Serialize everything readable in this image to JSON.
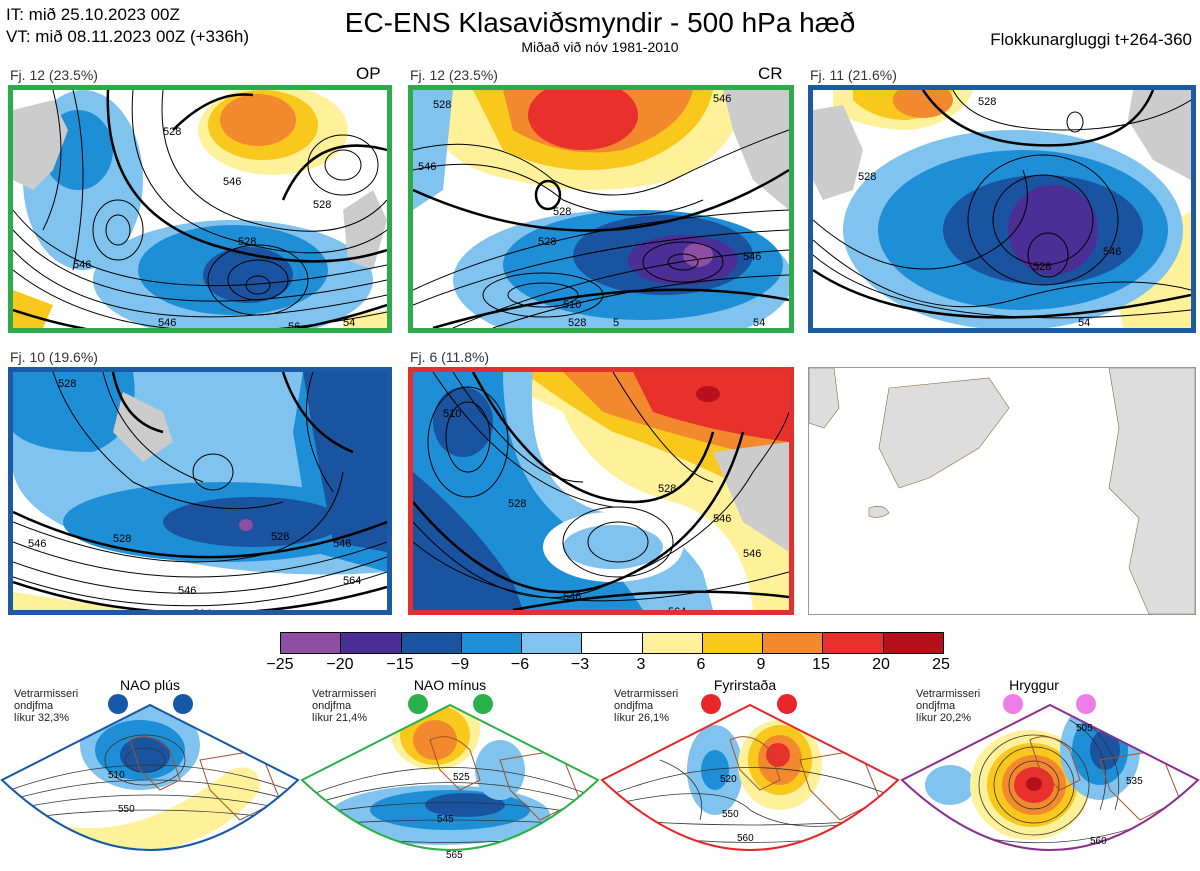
{
  "header": {
    "it_line": "IT: mið 25.10.2023 00Z",
    "vt_line": "VT: mið 08.11.2023 00Z  (+336h)",
    "title": "EC-ENS Klasaviðsmyndir - 500 hPa hæð",
    "subtitle": "Miðað við nóv 1981-2010",
    "window": "Flokkunargluggi t+264-360"
  },
  "panels": [
    {
      "label": "Fj. 12 (23.5%)",
      "tag": "OP",
      "border": "#2eaa4a"
    },
    {
      "label": "Fj. 12 (23.5%)",
      "tag": "CR",
      "border": "#2eaa4a"
    },
    {
      "label": "Fj. 11 (21.6%)",
      "tag": "",
      "border": "#1c5aa6"
    },
    {
      "label": "Fj. 10 (19.6%)",
      "tag": "",
      "border": "#1c5aa6"
    },
    {
      "label": "Fj. 6 (11.8%)",
      "tag": "",
      "border": "#e03030"
    }
  ],
  "contour_labels": {
    "p1": [
      "528",
      "546",
      "528",
      "528",
      "546",
      "546",
      "54",
      "56"
    ],
    "p2": [
      "546",
      "528",
      "528",
      "528",
      "546",
      "510",
      "528",
      "546",
      "54",
      "5"
    ],
    "p3": [
      "528",
      "528",
      "528",
      "546",
      "54"
    ],
    "p4": [
      "528",
      "546",
      "528",
      "528",
      "546",
      "564",
      "564",
      "546"
    ],
    "p5": [
      "510",
      "528",
      "528",
      "546",
      "546",
      "546",
      "564"
    ]
  },
  "colorbar": {
    "colors": [
      "#8e4fa3",
      "#4b2e96",
      "#1a53a0",
      "#1e8fd7",
      "#7fc3ee",
      "#ffffff",
      "#fff19a",
      "#f8c81c",
      "#f3892e",
      "#e8302c",
      "#b5111b"
    ],
    "ticks": [
      "−25",
      "−20",
      "−15",
      "−9",
      "−6",
      "−3",
      "3",
      "6",
      "9",
      "15",
      "20",
      "25"
    ]
  },
  "regimes": [
    {
      "title": "NAO plús",
      "desc1": "Vetrarmisseri",
      "desc2": "ondjfma",
      "desc3": "líkur 32,3%",
      "dot": "#1558a8",
      "edge": "#1558a8",
      "labels": [
        "510",
        "550"
      ]
    },
    {
      "title": "NAO mínus",
      "desc1": "Vetrarmisseri",
      "desc2": "ondjfma",
      "desc3": "líkur 21,4%",
      "dot": "#2bb04a",
      "edge": "#2bb04a",
      "labels": [
        "525",
        "545",
        "565"
      ]
    },
    {
      "title": "Fyrirstaða",
      "desc1": "Vetrarmisseri",
      "desc2": "ondjfma",
      "desc3": "líkur 26,1%",
      "dot": "#e8262a",
      "edge": "#e8262a",
      "labels": [
        "520",
        "550",
        "560"
      ]
    },
    {
      "title": "Hryggur",
      "desc1": "Vetrarmisseri",
      "desc2": "ondjfma",
      "desc3": "líkur 20,2%",
      "dot": "#ee7de8",
      "edge": "#8b2f8f",
      "labels": [
        "505",
        "535",
        "560"
      ]
    }
  ]
}
